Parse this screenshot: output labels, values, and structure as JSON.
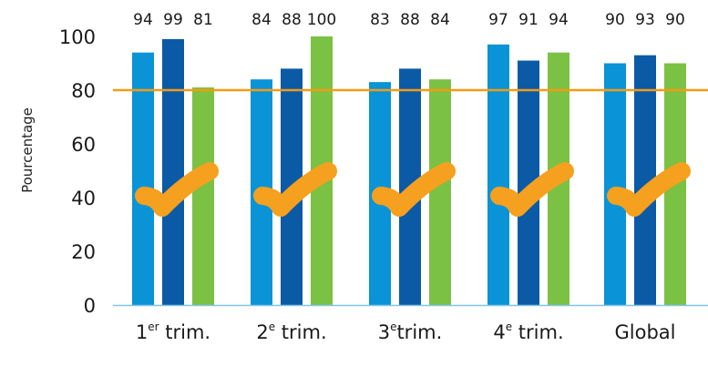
{
  "chart_data": {
    "type": "bar",
    "ylabel": "Pourcentage",
    "ylim": [
      0,
      100
    ],
    "yticks": [
      "0",
      "20",
      "40",
      "60",
      "80",
      "100"
    ],
    "target_line": {
      "value": 80,
      "color": "#f39c12"
    },
    "categories": [
      {
        "base": "1",
        "sup": "er",
        "rest": " trim."
      },
      {
        "base": "2",
        "sup": "e",
        "rest": " trim."
      },
      {
        "base": "3",
        "sup": "e",
        "rest": "trim."
      },
      {
        "base": "4",
        "sup": "e",
        "rest": " trim."
      },
      {
        "base": "Global",
        "sup": "",
        "rest": ""
      }
    ],
    "series": [
      {
        "color": "#0a93d6",
        "values": [
          94,
          84,
          83,
          97,
          90
        ]
      },
      {
        "color": "#0b5aa6",
        "values": [
          99,
          88,
          88,
          91,
          93
        ]
      },
      {
        "color": "#7bc143",
        "values": [
          81,
          100,
          84,
          94,
          90
        ]
      }
    ],
    "checkmark": {
      "icon": "checkmark-icon",
      "color": "#f5a01e"
    },
    "grid": false
  }
}
